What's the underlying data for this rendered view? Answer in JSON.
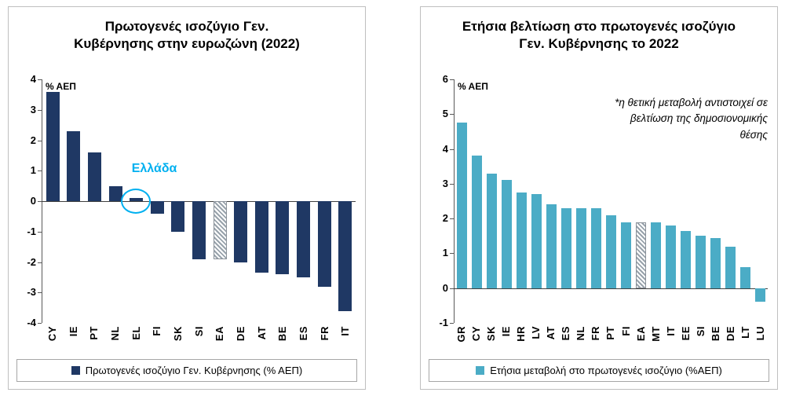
{
  "page": {
    "background": "#ffffff",
    "panel_border": "#bfbfbf"
  },
  "chart_data": [
    {
      "type": "bar",
      "title": "Πρωτογενές ισοζύγιο Γεν. Κυβέρνησης στην ευρωζώνη (2022)",
      "ylabel": "% ΑΕΠ",
      "categories": [
        "CY",
        "IE",
        "PT",
        "NL",
        "EL",
        "FI",
        "SK",
        "SI",
        "EA",
        "DE",
        "AT",
        "BE",
        "ES",
        "FR",
        "IT"
      ],
      "values": [
        3.6,
        2.3,
        1.6,
        0.5,
        0.1,
        -0.4,
        -1.0,
        -1.9,
        -1.9,
        -2.0,
        -2.35,
        -2.4,
        -2.5,
        -2.8,
        -3.6
      ],
      "ylim": [
        -4,
        4
      ],
      "yticks": [
        4,
        3,
        2,
        1,
        0,
        -1,
        -2,
        -3,
        -4
      ],
      "bar_color": "#1f3864",
      "hatched_category": "EA",
      "annotation": {
        "label": "Ελλάδα",
        "category": "EL",
        "color": "#00b0f0"
      },
      "legend": "Πρωτογενές ισοζύγιο Γεν. Κυβέρνησης (% ΑΕΠ)",
      "grid": false,
      "legend_position": "bottom"
    },
    {
      "type": "bar",
      "title": "Ετήσια βελτίωση στο πρωτογενές ισοζύγιο Γεν. Κυβέρνησης το 2022",
      "ylabel": "% ΑΕΠ",
      "note": "*η θετική μεταβολή αντιστοιχεί σε βελτίωση της δημοσιονομικής θέσης",
      "categories": [
        "GR",
        "CY",
        "SK",
        "IE",
        "HR",
        "LV",
        "AT",
        "ES",
        "NL",
        "FR",
        "PT",
        "FI",
        "EA",
        "MT",
        "IT",
        "EE",
        "SI",
        "BE",
        "DE",
        "LT",
        "LU"
      ],
      "values": [
        4.75,
        3.8,
        3.3,
        3.1,
        2.75,
        2.7,
        2.4,
        2.3,
        2.3,
        2.3,
        2.1,
        1.9,
        1.9,
        1.9,
        1.8,
        1.65,
        1.5,
        1.45,
        1.2,
        0.6,
        -0.4
      ],
      "ylim": [
        -1,
        6
      ],
      "yticks": [
        6,
        5,
        4,
        3,
        2,
        1,
        0,
        -1
      ],
      "bar_color": "#4bacc6",
      "hatched_category": "EA",
      "legend": "Ετήσια μεταβολή στο πρωτογενές ισοζύγιο (%ΑΕΠ)",
      "grid": false,
      "legend_position": "bottom"
    }
  ]
}
